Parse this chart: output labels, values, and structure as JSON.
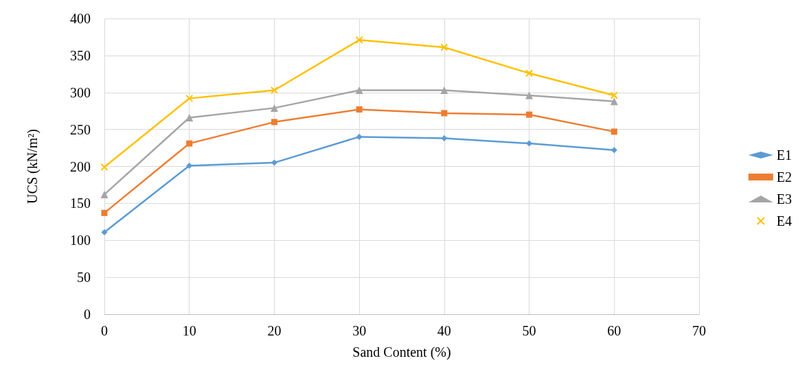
{
  "chart_data": {
    "type": "line",
    "xlabel": "Sand Content (%)",
    "ylabel": "UCS (kN/m²)",
    "x": [
      0,
      10,
      20,
      30,
      40,
      50,
      60
    ],
    "xlim": [
      0,
      70
    ],
    "xticks": [
      0,
      10,
      20,
      30,
      40,
      50,
      60,
      70
    ],
    "ylim": [
      0,
      400
    ],
    "yticks": [
      0,
      50,
      100,
      150,
      200,
      250,
      300,
      350,
      400
    ],
    "grid": true,
    "legend": "right",
    "series": [
      {
        "name": "E1",
        "color": "#5b9bd5",
        "marker": "diamond",
        "values": [
          111,
          201,
          205,
          240,
          238,
          231,
          222
        ]
      },
      {
        "name": "E2",
        "color": "#ed7d31",
        "marker": "square",
        "values": [
          137,
          231,
          260,
          277,
          272,
          270,
          247
        ]
      },
      {
        "name": "E3",
        "color": "#a5a5a5",
        "marker": "triangle",
        "values": [
          162,
          266,
          279,
          303,
          303,
          296,
          288
        ]
      },
      {
        "name": "E4",
        "color": "#ffc000",
        "marker": "cross",
        "values": [
          199,
          292,
          303,
          371,
          361,
          326,
          296
        ]
      }
    ]
  }
}
